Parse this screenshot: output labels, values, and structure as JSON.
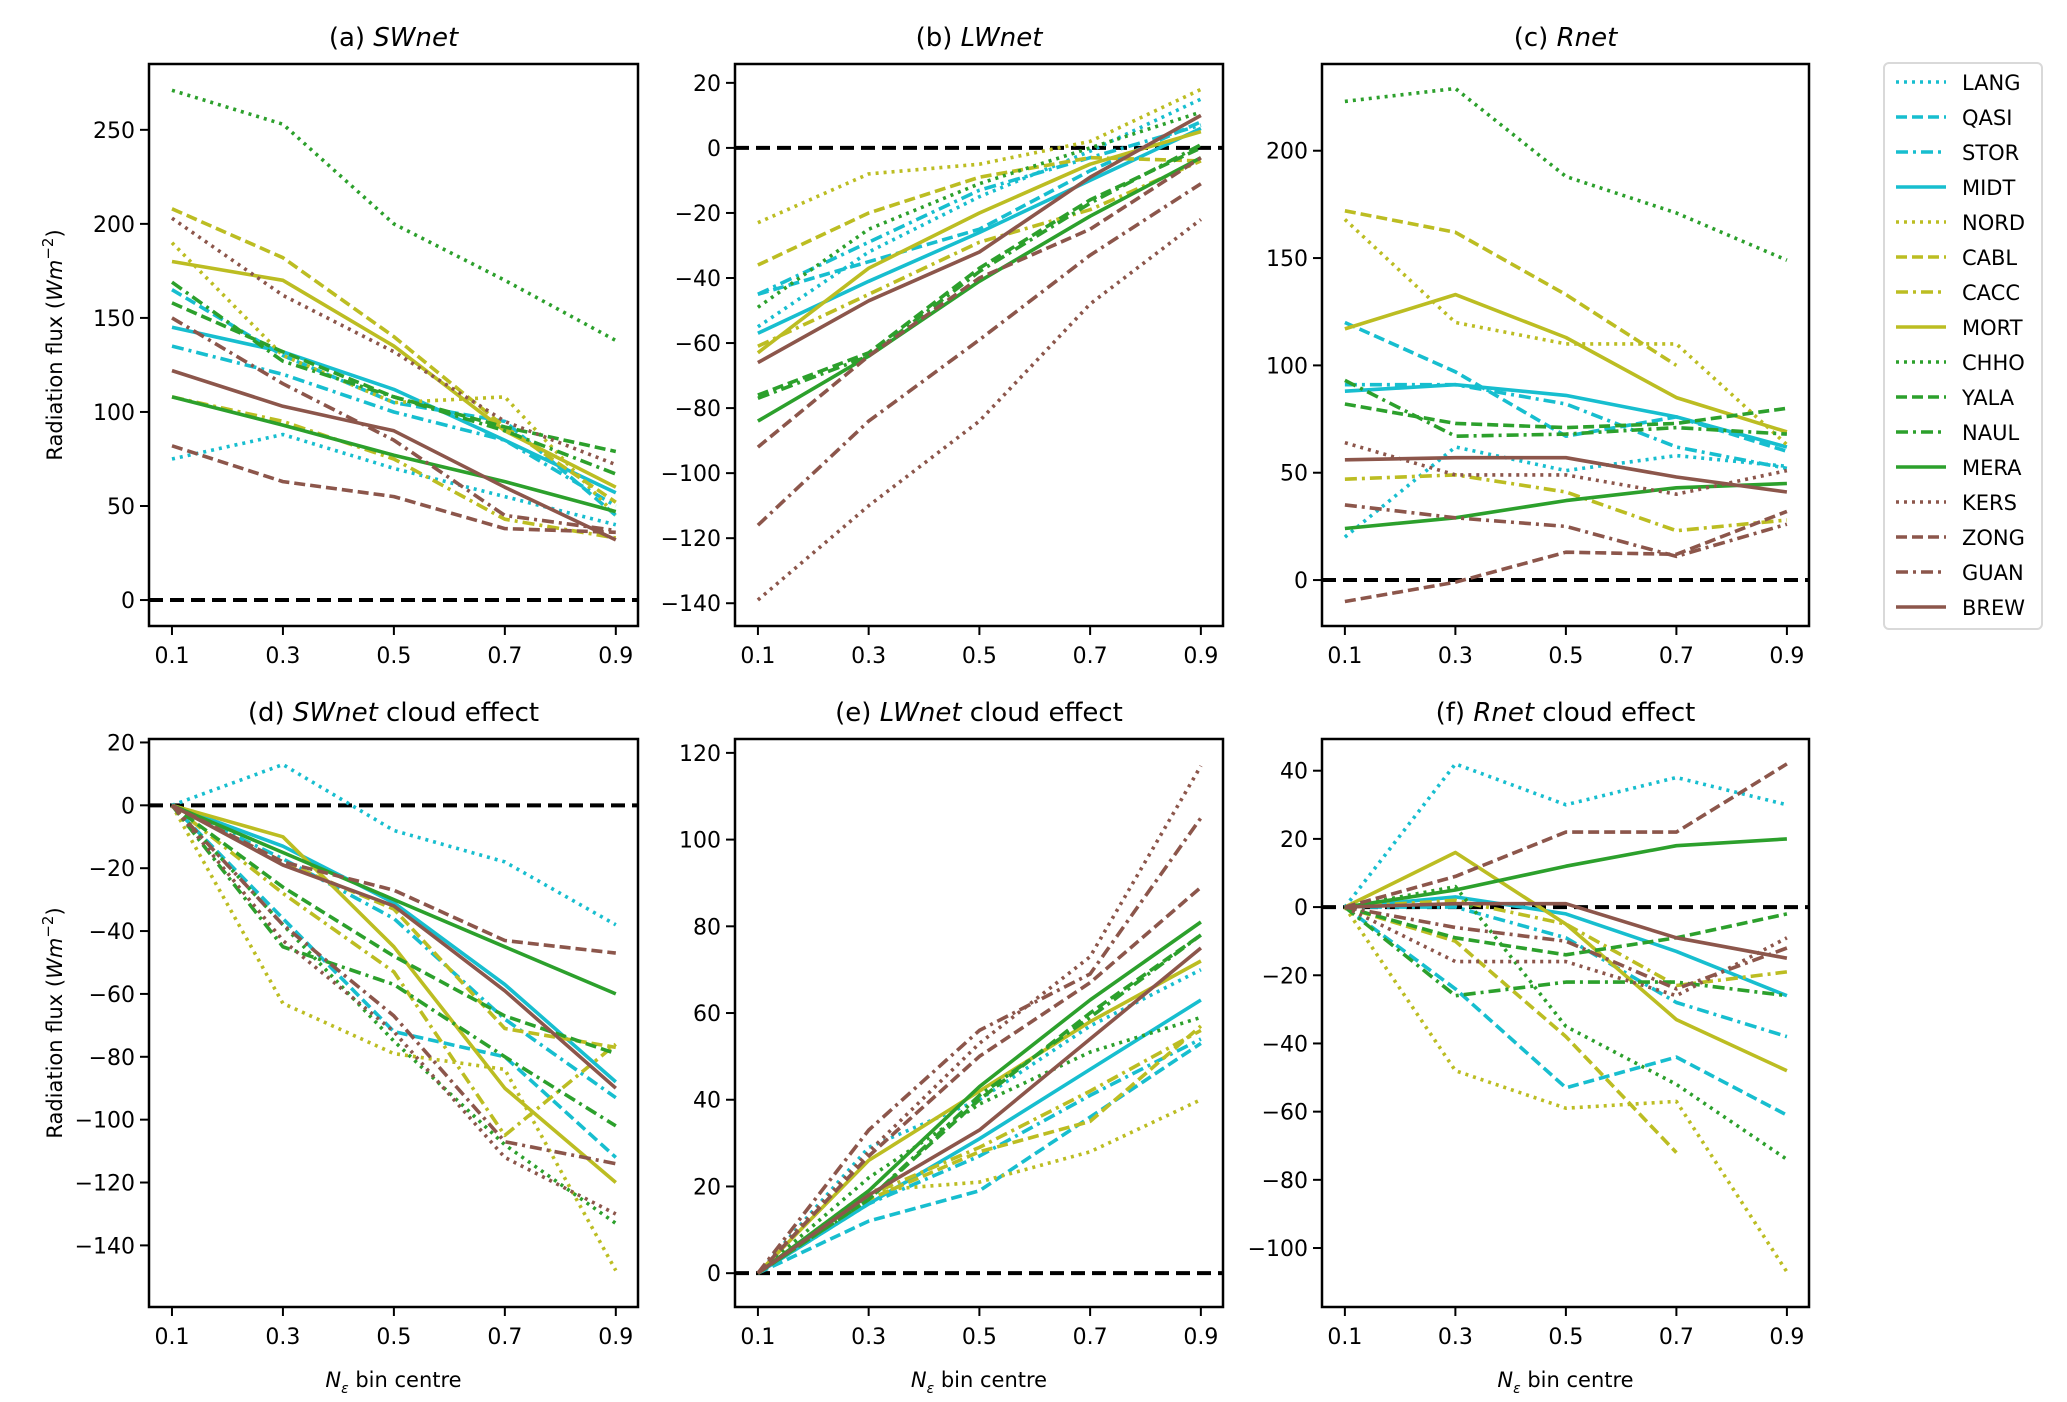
{
  "chart_data": {
    "type": "line",
    "x": [
      0.1,
      0.3,
      0.5,
      0.7,
      0.9
    ],
    "xticks": [
      "0.1",
      "0.3",
      "0.5",
      "0.7",
      "0.9"
    ],
    "xlabel_main": "N",
    "xlabel_sub": "ε",
    "xlabel_rest": " bin centre",
    "ylabel_main": "Radiation flux (",
    "ylabel_italic": "Wm",
    "ylabel_sup": "−2",
    "ylabel_end": ")",
    "reference_line": 0,
    "legend": {
      "position": "outside-right",
      "entries": [
        {
          "name": "LANG",
          "color": "#17becf",
          "style": "dotted"
        },
        {
          "name": "QASI",
          "color": "#17becf",
          "style": "dashed"
        },
        {
          "name": "STOR",
          "color": "#17becf",
          "style": "dashdot"
        },
        {
          "name": "MIDT",
          "color": "#17becf",
          "style": "solid"
        },
        {
          "name": "NORD",
          "color": "#bcbd22",
          "style": "dotted"
        },
        {
          "name": "CABL",
          "color": "#bcbd22",
          "style": "dashed"
        },
        {
          "name": "CACC",
          "color": "#bcbd22",
          "style": "dashdot"
        },
        {
          "name": "MORT",
          "color": "#bcbd22",
          "style": "solid"
        },
        {
          "name": "CHHO",
          "color": "#2ca02c",
          "style": "dotted"
        },
        {
          "name": "YALA",
          "color": "#2ca02c",
          "style": "dashed"
        },
        {
          "name": "NAUL",
          "color": "#2ca02c",
          "style": "dashdot"
        },
        {
          "name": "MERA",
          "color": "#2ca02c",
          "style": "solid"
        },
        {
          "name": "KERS",
          "color": "#8c564b",
          "style": "dotted"
        },
        {
          "name": "ZONG",
          "color": "#8c564b",
          "style": "dashed"
        },
        {
          "name": "GUAN",
          "color": "#8c564b",
          "style": "dashdot"
        },
        {
          "name": "BREW",
          "color": "#8c564b",
          "style": "solid"
        }
      ]
    },
    "panels": [
      {
        "id": "a",
        "title_prefix": "(a) ",
        "title_italic": "SWnet",
        "title_suffix": "",
        "ylim": [
          -13.8,
          285
        ],
        "yticks": [
          0,
          50,
          100,
          150,
          200,
          250
        ],
        "show_ylabel": true,
        "show_xlabel": false,
        "series": {
          "LANG": [
            75,
            88,
            70,
            55,
            40
          ],
          "QASI": [
            165,
            130,
            105,
            95,
            45
          ],
          "STOR": [
            135,
            120,
            100,
            85,
            50
          ],
          "MIDT": [
            145,
            132,
            112,
            85,
            57
          ],
          "NORD": [
            190,
            130,
            105,
            108,
            45
          ],
          "CABL": [
            208,
            182,
            140,
            92,
            52
          ],
          "CACC": [
            108,
            95,
            75,
            43,
            33
          ],
          "MORT": [
            180,
            170,
            135,
            90,
            60
          ],
          "CHHO": [
            271,
            253,
            200,
            170,
            138
          ],
          "YALA": [
            158,
            132,
            108,
            92,
            79
          ],
          "NAUL": [
            169,
            127,
            108,
            90,
            67
          ],
          "MERA": [
            108,
            93,
            77,
            63,
            47
          ],
          "KERS": [
            203,
            162,
            132,
            95,
            72
          ],
          "ZONG": [
            82,
            63,
            55,
            38,
            36
          ],
          "GUAN": [
            150,
            115,
            85,
            45,
            37
          ],
          "BREW": [
            122,
            103,
            90,
            60,
            32
          ]
        }
      },
      {
        "id": "b",
        "title_prefix": "(b) ",
        "title_italic": "LWnet",
        "title_suffix": "",
        "ylim": [
          -147,
          25.8
        ],
        "yticks": [
          -140,
          -120,
          -100,
          -80,
          -60,
          -40,
          -20,
          0,
          20
        ],
        "show_ylabel": false,
        "show_xlabel": false,
        "series": {
          "LANG": [
            -55,
            -32,
            -15,
            -1,
            15
          ],
          "QASI": [
            -45,
            -35,
            -25,
            -7,
            8
          ],
          "STOR": [
            -45,
            -29,
            -13,
            -3,
            7
          ],
          "MIDT": [
            -57,
            -41,
            -26,
            -10,
            6
          ],
          "NORD": [
            -23,
            -8,
            -5,
            2,
            18
          ],
          "CABL": [
            -36,
            -20,
            -9,
            -3,
            -4
          ],
          "CACC": [
            -61,
            -45,
            -29,
            -19,
            -4
          ],
          "MORT": [
            -63,
            -37,
            -20,
            -5,
            5
          ],
          "CHHO": [
            -49,
            -25,
            -11,
            0,
            11
          ],
          "YALA": [
            -76,
            -63,
            -37,
            -16,
            0
          ],
          "NAUL": [
            -77,
            -64,
            -38,
            -17,
            1
          ],
          "MERA": [
            -84,
            -64,
            -41,
            -21,
            -3
          ],
          "KERS": [
            -139,
            -110,
            -84,
            -48,
            -22
          ],
          "ZONG": [
            -92,
            -64,
            -40,
            -25,
            -3
          ],
          "GUAN": [
            -116,
            -84,
            -59,
            -33,
            -11
          ],
          "BREW": [
            -66,
            -47,
            -32,
            -9,
            10
          ]
        }
      },
      {
        "id": "c",
        "title_prefix": "(c) ",
        "title_italic": "Rnet",
        "title_suffix": "",
        "ylim": [
          -21.4,
          240.4
        ],
        "yticks": [
          0,
          50,
          100,
          150,
          200
        ],
        "show_ylabel": false,
        "show_xlabel": false,
        "series": {
          "LANG": [
            20,
            62,
            51,
            58,
            53
          ],
          "QASI": [
            120,
            97,
            67,
            76,
            60
          ],
          "STOR": [
            91,
            91,
            82,
            62,
            52
          ],
          "MIDT": [
            88,
            91,
            86,
            76,
            62
          ],
          "NORD": [
            168,
            120,
            110,
            110,
            63
          ],
          "CABL": [
            172,
            162,
            133,
            100,
            null
          ],
          "CACC": [
            47,
            49,
            41,
            23,
            28
          ],
          "MORT": [
            117,
            133,
            113,
            85,
            69
          ],
          "CHHO": [
            223,
            229,
            188,
            171,
            149
          ],
          "YALA": [
            82,
            73,
            71,
            73,
            80
          ],
          "NAUL": [
            93,
            67,
            68,
            71,
            68
          ],
          "MERA": [
            24,
            29,
            37,
            43,
            45
          ],
          "KERS": [
            64,
            49,
            49,
            40,
            51
          ],
          "ZONG": [
            -10,
            -1,
            13,
            12,
            32
          ],
          "GUAN": [
            35,
            29,
            25,
            11,
            26
          ],
          "BREW": [
            56,
            57,
            57,
            48,
            41
          ]
        }
      },
      {
        "id": "d",
        "title_prefix": "(d) ",
        "title_italic": "SWnet",
        "title_suffix": " cloud effect",
        "ylim": [
          -159.6,
          21.1
        ],
        "yticks": [
          -140,
          -120,
          -100,
          -80,
          -60,
          -40,
          -20,
          0,
          20
        ],
        "show_ylabel": true,
        "show_xlabel": true,
        "series": {
          "LANG": [
            0,
            13,
            -8,
            -18,
            -38
          ],
          "QASI": [
            0,
            -36,
            -72,
            -80,
            -112
          ],
          "STOR": [
            0,
            -17,
            -36,
            -68,
            -93
          ],
          "MIDT": [
            0,
            -13,
            -31,
            -57,
            -88
          ],
          "NORD": [
            0,
            -63,
            -79,
            -84,
            -148
          ],
          "CABL": [
            0,
            -18,
            -33,
            -71,
            -77
          ],
          "CACC": [
            0,
            -28,
            -53,
            -105,
            -76
          ],
          "MORT": [
            0,
            -10,
            -45,
            -90,
            -120
          ],
          "CHHO": [
            0,
            -38,
            -75,
            -108,
            -133
          ],
          "YALA": [
            0,
            -26,
            -48,
            -67,
            -79
          ],
          "NAUL": [
            0,
            -45,
            -57,
            -80,
            -102
          ],
          "MERA": [
            0,
            -15,
            -30,
            -45,
            -60
          ],
          "KERS": [
            0,
            -43,
            -72,
            -112,
            -130
          ],
          "ZONG": [
            0,
            -18,
            -27,
            -43,
            -47
          ],
          "GUAN": [
            0,
            -38,
            -67,
            -107,
            -114
          ],
          "BREW": [
            0,
            -19,
            -32,
            -59,
            -90
          ]
        }
      },
      {
        "id": "e",
        "title_prefix": "(e) ",
        "title_italic": "LWnet",
        "title_suffix": " cloud effect",
        "ylim": [
          -7.8,
          123.2
        ],
        "yticks": [
          0,
          20,
          40,
          60,
          80,
          100,
          120
        ],
        "show_ylabel": false,
        "show_xlabel": true,
        "series": {
          "LANG": [
            0,
            29,
            40,
            57,
            70
          ],
          "QASI": [
            0,
            12,
            19,
            36,
            53
          ],
          "STOR": [
            0,
            16,
            27,
            41,
            54
          ],
          "MIDT": [
            0,
            16,
            31,
            47,
            63
          ],
          "NORD": [
            0,
            19,
            21,
            28,
            40
          ],
          "CABL": [
            0,
            17,
            28,
            35,
            57
          ],
          "CACC": [
            0,
            18,
            29,
            42,
            56
          ],
          "MORT": [
            0,
            26,
            42,
            58,
            72
          ],
          "CHHO": [
            0,
            22,
            39,
            51,
            59
          ],
          "YALA": [
            0,
            17,
            40,
            60,
            78
          ],
          "NAUL": [
            0,
            17,
            41,
            59,
            78
          ],
          "MERA": [
            0,
            19,
            43,
            63,
            81
          ],
          "KERS": [
            0,
            28,
            53,
            73,
            117
          ],
          "ZONG": [
            0,
            27,
            50,
            67,
            89
          ],
          "GUAN": [
            0,
            33,
            56,
            69,
            105
          ],
          "BREW": [
            0,
            18,
            33,
            54,
            75
          ]
        }
      },
      {
        "id": "f",
        "title_prefix": "(f) ",
        "title_italic": "Rnet",
        "title_suffix": " cloud effect",
        "ylim": [
          -117.3,
          49.3
        ],
        "yticks": [
          -100,
          -80,
          -60,
          -40,
          -20,
          0,
          20,
          40
        ],
        "show_ylabel": false,
        "show_xlabel": true,
        "series": {
          "LANG": [
            0,
            42,
            30,
            38,
            30
          ],
          "QASI": [
            0,
            -24,
            -53,
            -44,
            -61
          ],
          "STOR": [
            0,
            0,
            -9,
            -28,
            -38
          ],
          "MIDT": [
            0,
            3,
            -2,
            -13,
            -26
          ],
          "NORD": [
            0,
            -48,
            -59,
            -57,
            -107
          ],
          "CABL": [
            0,
            -10,
            -38,
            -72,
            null
          ],
          "CACC": [
            0,
            2,
            -5,
            -23,
            -19
          ],
          "MORT": [
            0,
            16,
            -5,
            -33,
            -48
          ],
          "CHHO": [
            0,
            6,
            -35,
            -52,
            -74
          ],
          "YALA": [
            0,
            -9,
            -14,
            -9,
            -2
          ],
          "NAUL": [
            0,
            -26,
            -22,
            -22,
            -26
          ],
          "MERA": [
            0,
            5,
            12,
            18,
            20
          ],
          "KERS": [
            0,
            -16,
            -16,
            -26,
            -9
          ],
          "ZONG": [
            0,
            9,
            22,
            22,
            42
          ],
          "GUAN": [
            0,
            -6,
            -10,
            -24,
            -12
          ],
          "BREW": [
            0,
            1,
            1,
            -9,
            -15
          ]
        }
      }
    ]
  }
}
